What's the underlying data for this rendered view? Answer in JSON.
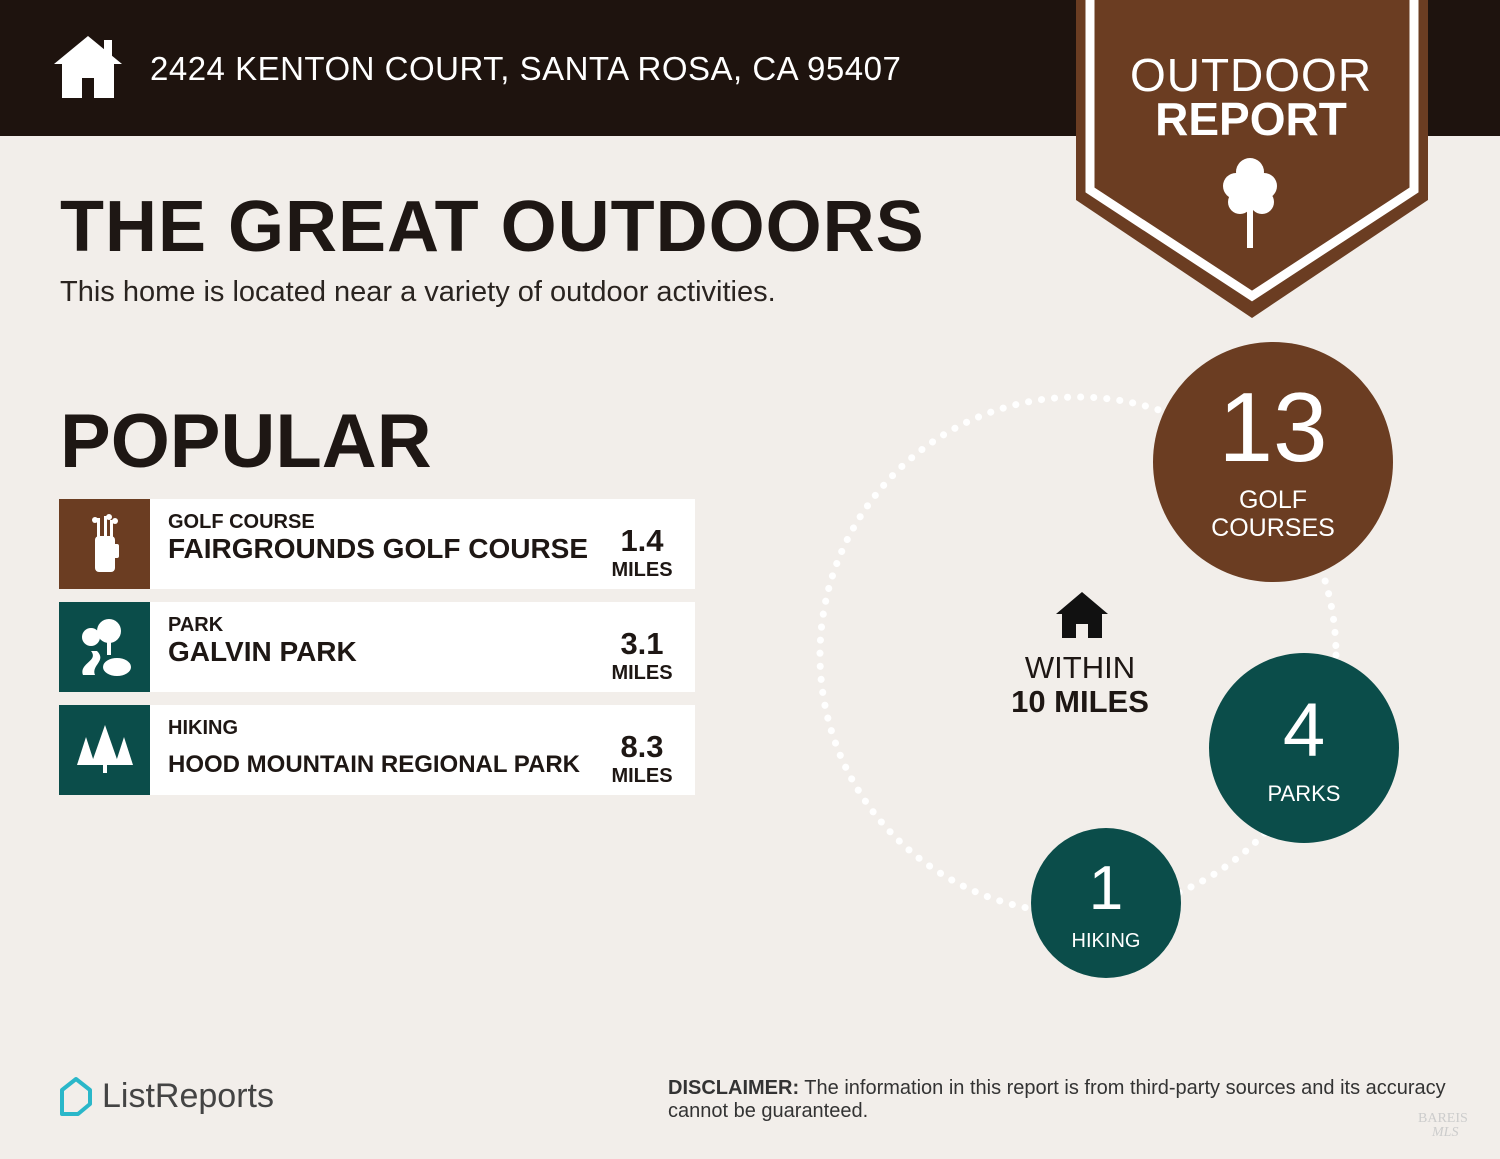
{
  "header": {
    "address": "2424 KENTON COURT, SANTA ROSA, CA 95407",
    "badge_line1": "OUTDOOR",
    "badge_line2": "REPORT"
  },
  "main": {
    "title": "THE GREAT OUTDOORS",
    "subtitle": "This home is located near a variety of outdoor activities.",
    "section": "POPULAR"
  },
  "popular": [
    {
      "category": "GOLF COURSE",
      "name": "FAIRGROUNDS GOLF COURSE",
      "distance": "1.4",
      "unit": "MILES",
      "icon": "golf-bag-icon",
      "color": "#6b3d22"
    },
    {
      "category": "PARK",
      "name": "GALVIN PARK",
      "distance": "3.1",
      "unit": "MILES",
      "icon": "park-icon",
      "color": "#0b4d4a"
    },
    {
      "category": "HIKING",
      "name": "HOOD MOUNTAIN REGIONAL PARK",
      "distance": "8.3",
      "unit": "MILES",
      "icon": "pine-trees-icon",
      "color": "#0b4d4a"
    }
  ],
  "radius": {
    "line1": "WITHIN",
    "line2": "10 MILES"
  },
  "counts": [
    {
      "value": "13",
      "label1": "GOLF",
      "label2": "COURSES",
      "color": "#6b3d22"
    },
    {
      "value": "4",
      "label": "PARKS",
      "color": "#0b4d4a"
    },
    {
      "value": "1",
      "label": "HIKING",
      "color": "#0b4d4a"
    }
  ],
  "footer": {
    "brand": "ListReports",
    "disclaimer_label": "DISCLAIMER:",
    "disclaimer_text": " The information in this report is from third-party sources and its accuracy cannot be guaranteed.",
    "mls_logo": "BAREIS MLS"
  },
  "colors": {
    "header": "#1e130e",
    "brown": "#6b3d22",
    "teal": "#0b4d4a",
    "background": "#f2eeea"
  }
}
